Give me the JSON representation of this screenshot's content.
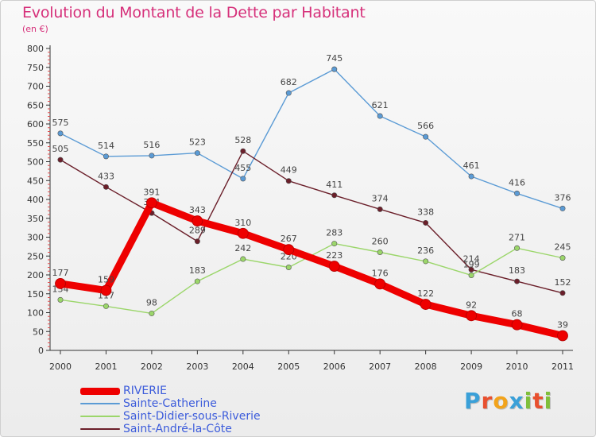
{
  "title": "Evolution du Montant de la Dette par Habitant",
  "unit": "(en €)",
  "logo": {
    "text": "Proxiti",
    "letters": [
      {
        "ch": "P",
        "color": "#3aa0d8"
      },
      {
        "ch": "r",
        "color": "#e8502f"
      },
      {
        "ch": "o",
        "color": "#f2a31b"
      },
      {
        "ch": "x",
        "color": "#3aa0d8"
      },
      {
        "ch": "i",
        "color": "#7fbf3a"
      },
      {
        "ch": "t",
        "color": "#e8502f"
      },
      {
        "ch": "i",
        "color": "#7fbf3a"
      }
    ]
  },
  "chart_data": {
    "type": "line",
    "x": [
      "2000",
      "2001",
      "2002",
      "2003",
      "2004",
      "2005",
      "2006",
      "2007",
      "2008",
      "2009",
      "2010",
      "2011"
    ],
    "ylim": [
      0,
      800
    ],
    "yticks": [
      0,
      50,
      100,
      150,
      200,
      250,
      300,
      350,
      400,
      450,
      500,
      550,
      600,
      650,
      700,
      750,
      800
    ],
    "grid": false,
    "legend_position": "bottom-left",
    "series": [
      {
        "name": "Sainte-Catherine",
        "color": "#5b9bd5",
        "values": [
          575,
          514,
          516,
          523,
          455,
          682,
          745,
          621,
          566,
          461,
          416,
          376
        ]
      },
      {
        "name": "Saint-André-la-Côte",
        "color": "#6b1f2a",
        "values": [
          505,
          433,
          364,
          289,
          528,
          449,
          411,
          374,
          338,
          214,
          183,
          152
        ]
      },
      {
        "name": "Saint-Didier-sous-Riverie",
        "color": "#9bd66a",
        "values": [
          134,
          117,
          98,
          183,
          242,
          220,
          283,
          260,
          236,
          199,
          271,
          245
        ]
      },
      {
        "name": "RIVERIE",
        "color": "#ee0000",
        "values": [
          177,
          159,
          391,
          343,
          310,
          267,
          223,
          176,
          122,
          92,
          68,
          39
        ]
      }
    ],
    "legend_order": [
      "RIVERIE",
      "Sainte-Catherine",
      "Saint-Didier-sous-Riverie",
      "Saint-André-la-Côte"
    ]
  }
}
